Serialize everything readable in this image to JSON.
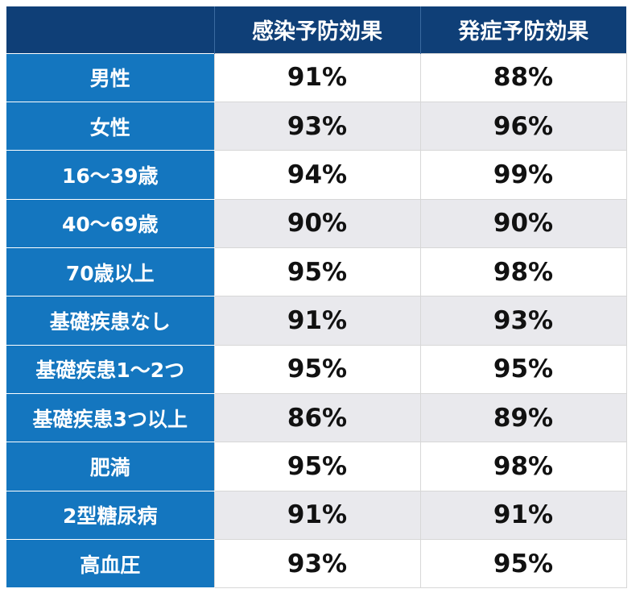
{
  "table": {
    "corner": "",
    "columns": [
      "感染予防効果",
      "発症予防効果"
    ],
    "rows": [
      {
        "label": "男性",
        "infection": "91%",
        "onset": "88%"
      },
      {
        "label": "女性",
        "infection": "93%",
        "onset": "96%"
      },
      {
        "label": "16〜39歳",
        "infection": "94%",
        "onset": "99%"
      },
      {
        "label": "40〜69歳",
        "infection": "90%",
        "onset": "90%"
      },
      {
        "label": "70歳以上",
        "infection": "95%",
        "onset": "98%"
      },
      {
        "label": "基礎疾患なし",
        "infection": "91%",
        "onset": "93%"
      },
      {
        "label": "基礎疾患1〜2つ",
        "infection": "95%",
        "onset": "95%"
      },
      {
        "label": "基礎疾患3つ以上",
        "infection": "86%",
        "onset": "89%"
      },
      {
        "label": "肥満",
        "infection": "95%",
        "onset": "98%"
      },
      {
        "label": "2型糖尿病",
        "infection": "91%",
        "onset": "91%"
      },
      {
        "label": "高血圧",
        "infection": "93%",
        "onset": "95%"
      }
    ]
  },
  "colors": {
    "header_bg": "#0f3f77",
    "row_label_bg": "#1476bf",
    "stripe_bg": "#e9e9ed"
  }
}
